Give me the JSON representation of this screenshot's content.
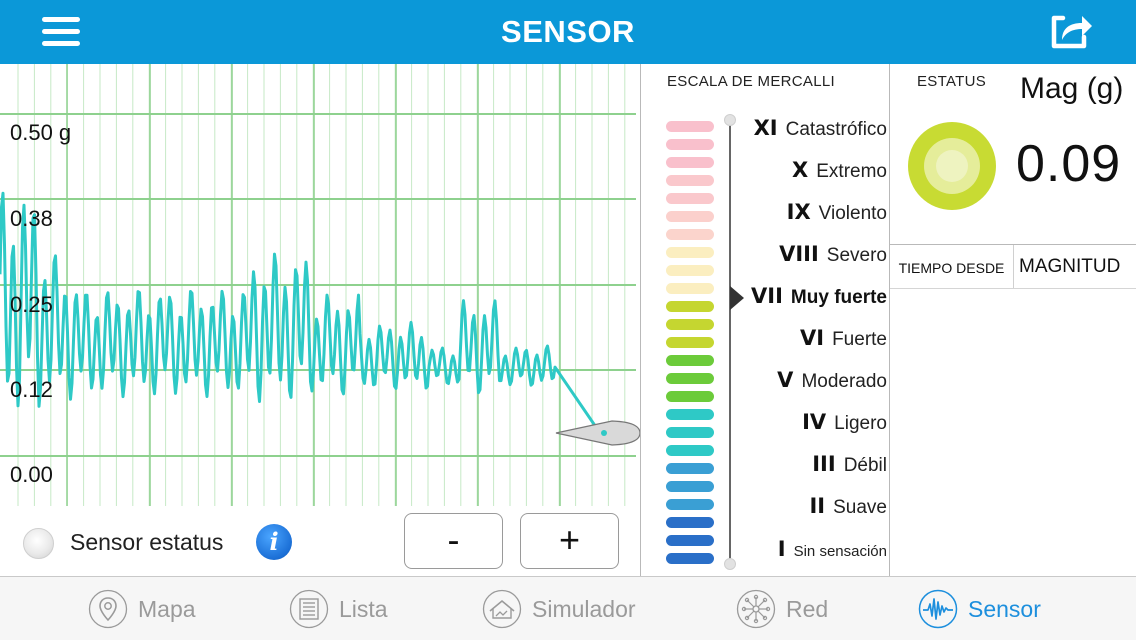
{
  "header": {
    "title": "SENSOR"
  },
  "chart": {
    "y_labels": [
      "0.50 g",
      "0.38",
      "0.25",
      "0.12",
      "0.00"
    ],
    "line_color": "#2ec9c6",
    "grid_color": "#8ed18e"
  },
  "controls": {
    "sensor_status_label": "Sensor estatus",
    "info_glyph": "i",
    "zoom_out_label": "-",
    "zoom_in_label": "+"
  },
  "mercalli": {
    "title": "ESCALA DE MERCALLI",
    "selected_level": "VII",
    "levels": [
      {
        "roman": "XI",
        "name": "Catastrófico"
      },
      {
        "roman": "X",
        "name": "Extremo"
      },
      {
        "roman": "IX",
        "name": "Violento"
      },
      {
        "roman": "VIII",
        "name": "Severo"
      },
      {
        "roman": "VII",
        "name": "Muy fuerte"
      },
      {
        "roman": "VI",
        "name": "Fuerte"
      },
      {
        "roman": "V",
        "name": "Moderado"
      },
      {
        "roman": "IV",
        "name": "Ligero"
      },
      {
        "roman": "III",
        "name": "Débil"
      },
      {
        "roman": "II",
        "name": "Suave"
      },
      {
        "roman": "I",
        "name": "Sin sensación"
      }
    ],
    "swatch_colors": [
      "#f9c0cc",
      "#f9c0cc",
      "#f9c0cc",
      "#fac8cc",
      "#fac8cc",
      "#fbd0cc",
      "#fbd4cc",
      "#fbeec0",
      "#fbeec0",
      "#fbeec0",
      "#c5d630",
      "#c5d630",
      "#c5d630",
      "#6ccb3a",
      "#6ccb3a",
      "#6ccb3a",
      "#2ec9c6",
      "#2ec9c6",
      "#2ec9c6",
      "#3a9fd4",
      "#3a9fd4",
      "#3a9fd4",
      "#2a6fc8",
      "#2a6fc8",
      "#2a6fc8"
    ]
  },
  "status": {
    "label": "ESTATUS",
    "mag_label": "Mag (g)",
    "mag_value": "0.09",
    "ring_color": "#c8db33"
  },
  "table": {
    "col_tiempo": "TIEMPO DESDE",
    "col_magnitud": "MAGNITUD"
  },
  "tabs": [
    {
      "label": "Mapa",
      "icon": "map-pin-icon",
      "active": false
    },
    {
      "label": "Lista",
      "icon": "list-icon",
      "active": false
    },
    {
      "label": "Simulador",
      "icon": "house-shake-icon",
      "active": false
    },
    {
      "label": "Red",
      "icon": "network-icon",
      "active": false
    },
    {
      "label": "Sensor",
      "icon": "seismograph-icon",
      "active": true
    }
  ]
}
